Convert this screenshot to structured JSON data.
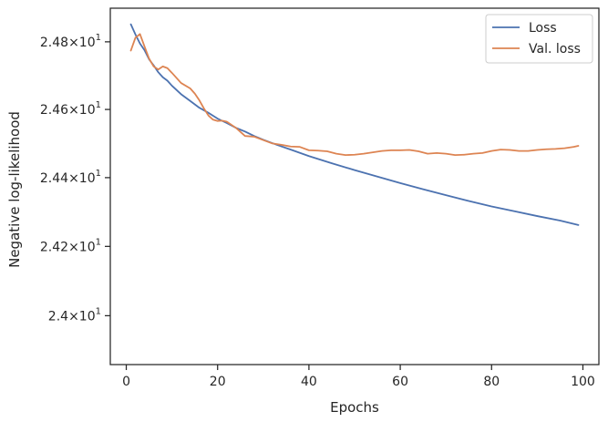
{
  "chart_data": {
    "type": "line",
    "xlabel": "Epochs",
    "ylabel": "Negative log-likelihood",
    "xlim": [
      -3.5,
      103.5
    ],
    "ylim": [
      23.86,
      24.9
    ],
    "y_scale": "log",
    "x_ticks": [
      0,
      20,
      40,
      60,
      80,
      100
    ],
    "x_tick_labels": [
      "0",
      "20",
      "40",
      "60",
      "80",
      "100"
    ],
    "y_ticks": [
      24.0,
      24.2,
      24.4,
      24.6,
      24.8
    ],
    "y_tick_labels": [
      {
        "mantissa": "2.4",
        "base": "10",
        "exp": "1"
      },
      {
        "mantissa": "2.42",
        "base": "10",
        "exp": "1"
      },
      {
        "mantissa": "2.44",
        "base": "10",
        "exp": "1"
      },
      {
        "mantissa": "2.46",
        "base": "10",
        "exp": "1"
      },
      {
        "mantissa": "2.48",
        "base": "10",
        "exp": "1"
      }
    ],
    "times_symbol": "×",
    "grid": false,
    "legend_position": "top-right",
    "series": [
      {
        "name": "Loss",
        "color": "#4c72b0",
        "x": [
          1,
          2,
          3,
          4,
          5,
          6,
          7,
          8,
          9,
          10,
          12,
          14,
          16,
          18,
          20,
          22,
          24,
          26,
          28,
          30,
          33,
          36,
          40,
          45,
          50,
          55,
          60,
          65,
          70,
          75,
          80,
          85,
          90,
          95,
          99
        ],
        "y": [
          24.852,
          24.822,
          24.795,
          24.775,
          24.748,
          24.73,
          24.71,
          24.695,
          24.685,
          24.67,
          24.645,
          24.625,
          24.605,
          24.59,
          24.573,
          24.56,
          24.546,
          24.535,
          24.522,
          24.511,
          24.496,
          24.482,
          24.463,
          24.442,
          24.422,
          24.403,
          24.384,
          24.366,
          24.349,
          24.332,
          24.316,
          24.302,
          24.288,
          24.275,
          24.262
        ]
      },
      {
        "name": "Val. loss",
        "color": "#dd8452",
        "x": [
          1,
          2,
          3,
          4,
          5,
          6,
          7,
          8,
          9,
          10,
          12,
          14,
          15,
          16,
          17,
          18,
          19,
          20,
          21,
          22,
          24,
          26,
          28,
          30,
          32,
          34,
          36,
          38,
          40,
          42,
          44,
          46,
          48,
          50,
          52,
          54,
          56,
          58,
          60,
          62,
          64,
          66,
          68,
          70,
          72,
          74,
          76,
          78,
          80,
          82,
          84,
          86,
          88,
          90,
          92,
          94,
          96,
          98,
          99
        ],
        "y": [
          24.774,
          24.812,
          24.823,
          24.786,
          24.75,
          24.727,
          24.718,
          24.727,
          24.722,
          24.708,
          24.678,
          24.662,
          24.647,
          24.627,
          24.603,
          24.582,
          24.57,
          24.566,
          24.567,
          24.564,
          24.546,
          24.522,
          24.52,
          24.51,
          24.5,
          24.496,
          24.491,
          24.49,
          24.48,
          24.479,
          24.477,
          24.47,
          24.466,
          24.467,
          24.47,
          24.474,
          24.478,
          24.48,
          24.48,
          24.481,
          24.477,
          24.47,
          24.472,
          24.47,
          24.466,
          24.467,
          24.47,
          24.472,
          24.478,
          24.482,
          24.481,
          24.478,
          24.478,
          24.481,
          24.483,
          24.484,
          24.486,
          24.49,
          24.493
        ]
      }
    ]
  }
}
